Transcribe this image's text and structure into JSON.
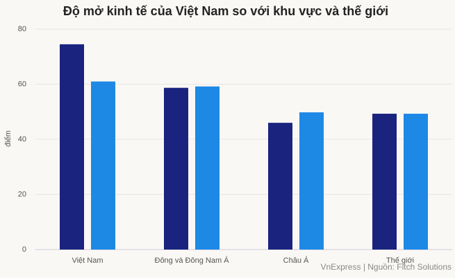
{
  "chart_data": {
    "type": "bar",
    "title": "Độ mở kinh tế của Việt Nam so với khu vực và thế giới",
    "y_label": "điểm",
    "source": "VnExpress | Nguồn: Fitch Solutions",
    "categories": [
      "Việt Nam",
      "Đông và Đông Nam Á",
      "Châu Á",
      "Thế giới"
    ],
    "series": [
      {
        "color": "#1a237e",
        "values": [
          74.5,
          58.7,
          46,
          49.3
        ]
      },
      {
        "color": "#1e88e5",
        "values": [
          61,
          59.2,
          49.8,
          49.3
        ]
      }
    ],
    "ylim": [
      0,
      80
    ],
    "yticks": [
      0,
      20,
      40,
      60,
      80
    ],
    "grid": true
  }
}
